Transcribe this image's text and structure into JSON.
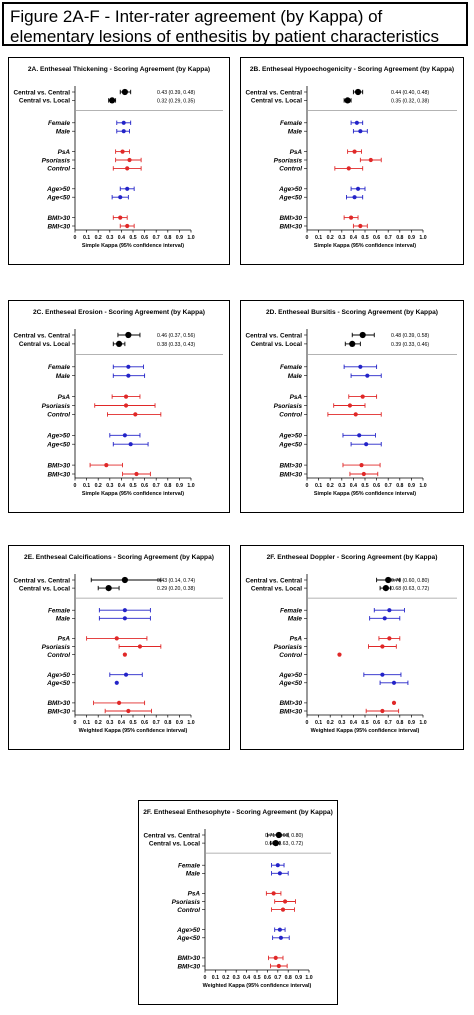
{
  "title": "Figure 2A-F - Inter-rater agreement (by Kappa) of elementary lesions of enthesitis by patient characteristics",
  "colors": {
    "black": "#000000",
    "blue": "#2323c8",
    "red": "#e02828",
    "separator": "#9a9a9a"
  },
  "chart_data": [
    {
      "type": "forest",
      "title": "2A. Entheseal Thickening - Scoring Agreement (by Kappa)",
      "xlabel": "Simple Kappa (95% confidence interval)",
      "xlim": [
        0,
        1.0
      ],
      "ticks": [
        "0",
        "0.1",
        "0.2",
        "0.3",
        "0.4",
        "0.5",
        "0.6",
        "0.7",
        "0.8",
        "0.9",
        "1.0"
      ],
      "rows": [
        {
          "label": "Central vs. Central",
          "value": 0.43,
          "ci": [
            0.39,
            0.48
          ],
          "text": "0.43  (0.39, 0.48)",
          "color": "black",
          "group": 0
        },
        {
          "label": "Central vs. Local",
          "value": 0.32,
          "ci": [
            0.29,
            0.35
          ],
          "text": "0.32 (0.29, 0.35)",
          "color": "black",
          "group": 0
        },
        {
          "label": "Female",
          "value": 0.42,
          "ci": [
            0.36,
            0.48
          ],
          "color": "blue",
          "group": 1
        },
        {
          "label": "Male",
          "value": 0.42,
          "ci": [
            0.36,
            0.47
          ],
          "color": "blue",
          "group": 1
        },
        {
          "label": "PsA",
          "value": 0.41,
          "ci": [
            0.35,
            0.47
          ],
          "color": "red",
          "group": 2
        },
        {
          "label": "Psoriasis",
          "value": 0.47,
          "ci": [
            0.35,
            0.57
          ],
          "color": "red",
          "group": 2
        },
        {
          "label": "Control",
          "value": 0.45,
          "ci": [
            0.33,
            0.57
          ],
          "color": "red",
          "group": 2
        },
        {
          "label": "Age>50",
          "value": 0.45,
          "ci": [
            0.39,
            0.51
          ],
          "color": "blue",
          "group": 3
        },
        {
          "label": "Age<50",
          "value": 0.39,
          "ci": [
            0.32,
            0.46
          ],
          "color": "blue",
          "group": 3
        },
        {
          "label": "BMI>30",
          "value": 0.39,
          "ci": [
            0.33,
            0.45
          ],
          "color": "red",
          "group": 4
        },
        {
          "label": "BMI<30",
          "value": 0.45,
          "ci": [
            0.39,
            0.51
          ],
          "color": "red",
          "group": 4
        }
      ]
    },
    {
      "type": "forest",
      "title": "2B. Entheseal Hypoechogenicity - Scoring Agreement (by Kappa)",
      "xlabel": "Simple Kappa (95% confidence interval)",
      "xlim": [
        0,
        1.0
      ],
      "ticks": [
        "0",
        "0.1",
        "0.2",
        "0.3",
        "0.4",
        "0.5",
        "0.6",
        "0.7",
        "0.8",
        "0.9",
        "1.0"
      ],
      "rows": [
        {
          "label": "Central vs. Central",
          "value": 0.44,
          "ci": [
            0.4,
            0.48
          ],
          "text": "0.44 (0.40, 0.48)",
          "color": "black",
          "group": 0
        },
        {
          "label": "Central vs. Local",
          "value": 0.35,
          "ci": [
            0.32,
            0.38
          ],
          "text": "0.35 (0.32, 0.38)",
          "color": "black",
          "group": 0
        },
        {
          "label": "Female",
          "value": 0.43,
          "ci": [
            0.38,
            0.48
          ],
          "color": "blue",
          "group": 1
        },
        {
          "label": "Male",
          "value": 0.46,
          "ci": [
            0.4,
            0.52
          ],
          "color": "blue",
          "group": 1
        },
        {
          "label": "PsA",
          "value": 0.41,
          "ci": [
            0.35,
            0.47
          ],
          "color": "red",
          "group": 2
        },
        {
          "label": "Psoriasis",
          "value": 0.55,
          "ci": [
            0.46,
            0.64
          ],
          "color": "red",
          "group": 2
        },
        {
          "label": "Control",
          "value": 0.36,
          "ci": [
            0.24,
            0.48
          ],
          "color": "red",
          "group": 2
        },
        {
          "label": "Age>50",
          "value": 0.44,
          "ci": [
            0.38,
            0.5
          ],
          "color": "blue",
          "group": 3
        },
        {
          "label": "Age<50",
          "value": 0.41,
          "ci": [
            0.34,
            0.48
          ],
          "color": "blue",
          "group": 3
        },
        {
          "label": "BMI>30",
          "value": 0.38,
          "ci": [
            0.32,
            0.44
          ],
          "color": "red",
          "group": 4
        },
        {
          "label": "BMI<30",
          "value": 0.46,
          "ci": [
            0.4,
            0.52
          ],
          "color": "red",
          "group": 4
        }
      ]
    },
    {
      "type": "forest",
      "title": "2C. Entheseal Erosion - Scoring Agreement (by Kappa)",
      "xlabel": "Simple Kappa (95% confidence interval)",
      "xlim": [
        0,
        1.0
      ],
      "ticks": [
        "0",
        "0.1",
        "0.2",
        "0.3",
        "0.4",
        "0.5",
        "0.6",
        "0.7",
        "0.8",
        "0.9",
        "1.0"
      ],
      "rows": [
        {
          "label": "Central vs. Central",
          "value": 0.46,
          "ci": [
            0.37,
            0.56
          ],
          "text": "0.46 (0.37, 0.56)",
          "color": "black",
          "group": 0
        },
        {
          "label": "Central vs. Local",
          "value": 0.38,
          "ci": [
            0.33,
            0.43
          ],
          "text": "0.38 (0.33, 0.43)",
          "color": "black",
          "group": 0
        },
        {
          "label": "Female",
          "value": 0.46,
          "ci": [
            0.33,
            0.59
          ],
          "color": "blue",
          "group": 1
        },
        {
          "label": "Male",
          "value": 0.46,
          "ci": [
            0.33,
            0.6
          ],
          "color": "blue",
          "group": 1
        },
        {
          "label": "PsA",
          "value": 0.44,
          "ci": [
            0.32,
            0.56
          ],
          "color": "red",
          "group": 2
        },
        {
          "label": "Psoriasis",
          "value": 0.44,
          "ci": [
            0.17,
            0.69
          ],
          "color": "red",
          "group": 2
        },
        {
          "label": "Control",
          "value": 0.52,
          "ci": [
            0.28,
            0.74
          ],
          "color": "red",
          "group": 2
        },
        {
          "label": "Age>50",
          "value": 0.43,
          "ci": [
            0.3,
            0.56
          ],
          "color": "blue",
          "group": 3
        },
        {
          "label": "Age<50",
          "value": 0.48,
          "ci": [
            0.33,
            0.63
          ],
          "color": "blue",
          "group": 3
        },
        {
          "label": "BMI>30",
          "value": 0.27,
          "ci": [
            0.13,
            0.41
          ],
          "color": "red",
          "group": 4
        },
        {
          "label": "BMI<30",
          "value": 0.53,
          "ci": [
            0.41,
            0.65
          ],
          "color": "red",
          "group": 4
        }
      ]
    },
    {
      "type": "forest",
      "title": "2D. Entheseal Bursitis - Scoring Agreement (by Kappa)",
      "xlabel": "Simple Kappa (95% confidence interval)",
      "xlim": [
        0,
        1.0
      ],
      "ticks": [
        "0",
        "0.1",
        "0.2",
        "0.3",
        "0.4",
        "0.5",
        "0.6",
        "0.7",
        "0.8",
        "0.9",
        "1.0"
      ],
      "rows": [
        {
          "label": "Central vs. Central",
          "value": 0.48,
          "ci": [
            0.39,
            0.58
          ],
          "text": "0.48 (0.39, 0.58)",
          "color": "black",
          "group": 0
        },
        {
          "label": "Central vs. Local",
          "value": 0.39,
          "ci": [
            0.33,
            0.46
          ],
          "text": "0.39 (0.33, 0.46)",
          "color": "black",
          "group": 0
        },
        {
          "label": "Female",
          "value": 0.46,
          "ci": [
            0.32,
            0.6
          ],
          "color": "blue",
          "group": 1
        },
        {
          "label": "Male",
          "value": 0.52,
          "ci": [
            0.38,
            0.64
          ],
          "color": "blue",
          "group": 1
        },
        {
          "label": "PsA",
          "value": 0.48,
          "ci": [
            0.36,
            0.6
          ],
          "color": "red",
          "group": 2
        },
        {
          "label": "Psoriasis",
          "value": 0.37,
          "ci": [
            0.23,
            0.5
          ],
          "color": "red",
          "group": 2
        },
        {
          "label": "Control",
          "value": 0.42,
          "ci": [
            0.18,
            0.64
          ],
          "color": "red",
          "group": 2
        },
        {
          "label": "Age>50",
          "value": 0.45,
          "ci": [
            0.31,
            0.59
          ],
          "color": "blue",
          "group": 3
        },
        {
          "label": "Age<50",
          "value": 0.51,
          "ci": [
            0.38,
            0.64
          ],
          "color": "blue",
          "group": 3
        },
        {
          "label": "BMI>30",
          "value": 0.47,
          "ci": [
            0.31,
            0.63
          ],
          "color": "red",
          "group": 4
        },
        {
          "label": "BMI<30",
          "value": 0.49,
          "ci": [
            0.37,
            0.61
          ],
          "color": "red",
          "group": 4
        }
      ]
    },
    {
      "type": "forest",
      "title": "2E. Entheseal Calcifications - Scoring Agreement (by Kappa)",
      "xlabel": "Weighted Kappa (95% confidence interval)",
      "xlim": [
        0,
        1.0
      ],
      "ticks": [
        "0",
        "0.1",
        "0.2",
        "0.3",
        "0.4",
        "0.5",
        "0.6",
        "0.7",
        "0.8",
        "0.9",
        "1.0"
      ],
      "rows": [
        {
          "label": "Central vs. Central",
          "value": 0.43,
          "ci": [
            0.14,
            0.74
          ],
          "text": "0.43 (0.14, 0.74)",
          "color": "black",
          "group": 0
        },
        {
          "label": "Central vs. Local",
          "value": 0.29,
          "ci": [
            0.2,
            0.38
          ],
          "text": "0.29 (0.20, 0.38)",
          "color": "black",
          "group": 0
        },
        {
          "label": "Female",
          "value": 0.43,
          "ci": [
            0.21,
            0.65
          ],
          "color": "blue",
          "group": 1
        },
        {
          "label": "Male",
          "value": 0.43,
          "ci": [
            0.21,
            0.65
          ],
          "color": "blue",
          "group": 1
        },
        {
          "label": "PsA",
          "value": 0.36,
          "ci": [
            0.1,
            0.62
          ],
          "color": "red",
          "group": 2
        },
        {
          "label": "Psoriasis",
          "value": 0.56,
          "ci": [
            0.38,
            0.74
          ],
          "color": "red",
          "group": 2
        },
        {
          "label": "Control",
          "value": 0.43,
          "ci": null,
          "color": "red",
          "group": 2
        },
        {
          "label": "Age>50",
          "value": 0.44,
          "ci": [
            0.3,
            0.58
          ],
          "color": "blue",
          "group": 3
        },
        {
          "label": "Age<50",
          "value": 0.36,
          "ci": null,
          "color": "blue",
          "group": 3
        },
        {
          "label": "BMI>30",
          "value": 0.38,
          "ci": [
            0.16,
            0.6
          ],
          "color": "red",
          "group": 4
        },
        {
          "label": "BMI<30",
          "value": 0.46,
          "ci": [
            0.26,
            0.66
          ],
          "color": "red",
          "group": 4
        }
      ]
    },
    {
      "type": "forest",
      "title": "2F. Entheseal Doppler - Scoring Agreement (by Kappa)",
      "xlabel": "Weighted Kappa (95% confidence interval)",
      "xlim": [
        0,
        1.0
      ],
      "ticks": [
        "0",
        "0.1",
        "0.2",
        "0.3",
        "0.4",
        "0.5",
        "0.6",
        "0.7",
        "0.8",
        "0.9",
        "1.0"
      ],
      "rows": [
        {
          "label": "Central vs. Central",
          "value": 0.7,
          "ci": [
            0.6,
            0.8
          ],
          "text": "0.70 (0.60, 0.80)",
          "color": "black",
          "group": 0
        },
        {
          "label": "Central vs. Local",
          "value": 0.68,
          "ci": [
            0.63,
            0.72
          ],
          "text": "0.68 (0.63, 0.72)",
          "color": "black",
          "group": 0
        },
        {
          "label": "Female",
          "value": 0.71,
          "ci": [
            0.58,
            0.84
          ],
          "color": "blue",
          "group": 1
        },
        {
          "label": "Male",
          "value": 0.67,
          "ci": [
            0.54,
            0.8
          ],
          "color": "blue",
          "group": 1
        },
        {
          "label": "PsA",
          "value": 0.71,
          "ci": [
            0.62,
            0.8
          ],
          "color": "red",
          "group": 2
        },
        {
          "label": "Psoriasis",
          "value": 0.65,
          "ci": [
            0.53,
            0.77
          ],
          "color": "red",
          "group": 2
        },
        {
          "label": "Control",
          "value": 0.28,
          "ci": null,
          "color": "red",
          "group": 2
        },
        {
          "label": "Age>50",
          "value": 0.65,
          "ci": [
            0.49,
            0.81
          ],
          "color": "blue",
          "group": 3
        },
        {
          "label": "Age<50",
          "value": 0.75,
          "ci": [
            0.63,
            0.87
          ],
          "color": "blue",
          "group": 3
        },
        {
          "label": "BMI>30",
          "value": 0.75,
          "ci": null,
          "color": "red",
          "group": 4
        },
        {
          "label": "BMI<30",
          "value": 0.65,
          "ci": [
            0.51,
            0.79
          ],
          "color": "red",
          "group": 4
        }
      ]
    },
    {
      "type": "forest",
      "title": "2F. Entheseal Enthesophyte - Scoring Agreement (by Kappa)",
      "xlabel": "Weighted Kappa (95% confidence interval)",
      "xlim": [
        0,
        1.0
      ],
      "ticks": [
        "0",
        "0.1",
        "0.2",
        "0.3",
        "0.4",
        "0.5",
        "0.6",
        "0.7",
        "0.8",
        "0.9",
        "1.0"
      ],
      "rows": [
        {
          "label": "Central vs. Central",
          "value": 0.71,
          "ci": [
            0.6,
            0.8
          ],
          "text": "0.71 (0.60, 0.80)",
          "color": "black",
          "group": 0
        },
        {
          "label": "Central vs. Local",
          "value": 0.68,
          "ci": [
            0.63,
            0.72
          ],
          "text": "0.68 (0.63, 0.72)",
          "color": "black",
          "group": 0
        },
        {
          "label": "Female",
          "value": 0.7,
          "ci": [
            0.64,
            0.76
          ],
          "color": "blue",
          "group": 1
        },
        {
          "label": "Male",
          "value": 0.72,
          "ci": [
            0.64,
            0.8
          ],
          "color": "blue",
          "group": 1
        },
        {
          "label": "PsA",
          "value": 0.66,
          "ci": [
            0.59,
            0.73
          ],
          "color": "red",
          "group": 2
        },
        {
          "label": "Psoriasis",
          "value": 0.77,
          "ci": [
            0.67,
            0.87
          ],
          "color": "red",
          "group": 2
        },
        {
          "label": "Control",
          "value": 0.75,
          "ci": [
            0.64,
            0.86
          ],
          "color": "red",
          "group": 2
        },
        {
          "label": "Age>50",
          "value": 0.72,
          "ci": [
            0.67,
            0.77
          ],
          "color": "blue",
          "group": 3
        },
        {
          "label": "Age<50",
          "value": 0.73,
          "ci": [
            0.65,
            0.81
          ],
          "color": "blue",
          "group": 3
        },
        {
          "label": "BMI>30",
          "value": 0.68,
          "ci": [
            0.61,
            0.75
          ],
          "color": "red",
          "group": 4
        },
        {
          "label": "BMI<30",
          "value": 0.71,
          "ci": [
            0.63,
            0.79
          ],
          "color": "red",
          "group": 4
        }
      ]
    }
  ]
}
